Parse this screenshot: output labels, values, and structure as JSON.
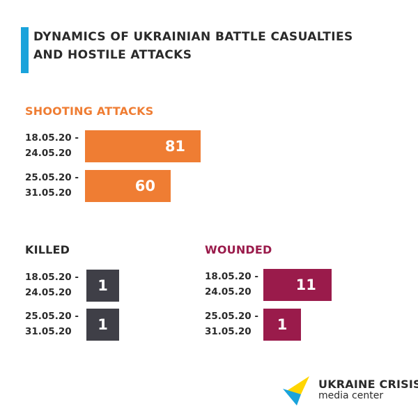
{
  "header": {
    "title_line1": "DYNAMICS OF UKRAINIAN BATTLE CASUALTIES",
    "title_line2": "AND HOSTILE ATTACKS",
    "accent_color": "#1aa3db"
  },
  "chart_data": [
    {
      "type": "bar",
      "orientation": "horizontal",
      "title": "SHOOTING ATTACKS",
      "color": "#ef7d33",
      "categories": [
        [
          "18.05.20 -",
          "24.05.20"
        ],
        [
          "25.05.20 -",
          "31.05.20"
        ]
      ],
      "values": [
        81,
        60
      ]
    },
    {
      "type": "bar",
      "orientation": "horizontal",
      "title": "KILLED",
      "color": "#3f3f47",
      "categories": [
        [
          "18.05.20 -",
          "24.05.20"
        ],
        [
          "25.05.20 -",
          "31.05.20"
        ]
      ],
      "values": [
        1,
        1
      ]
    },
    {
      "type": "bar",
      "orientation": "horizontal",
      "title": "WOUNDED",
      "color": "#9a1b4b",
      "categories": [
        [
          "18.05.20 -",
          "24.05.20"
        ],
        [
          "25.05.20 -",
          "31.05.20"
        ]
      ],
      "values": [
        11,
        1
      ]
    }
  ],
  "logo": {
    "name": "UKRAINE CRISIS",
    "subtitle": "media center",
    "colors": [
      "#ffd500",
      "#1aa3db"
    ]
  }
}
